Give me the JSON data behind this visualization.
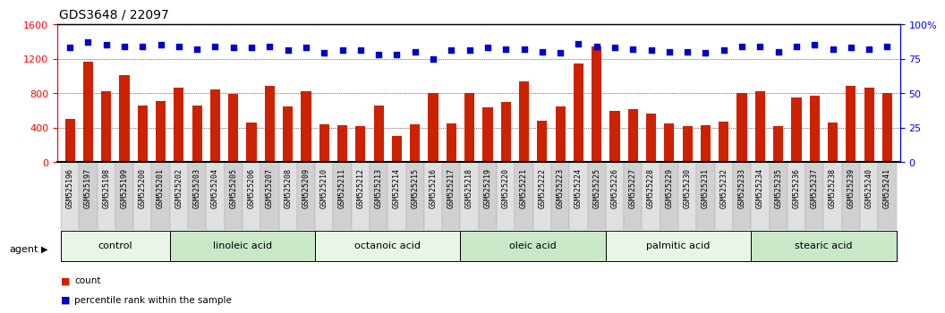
{
  "title": "GDS3648 / 22097",
  "samples": [
    "GSM525196",
    "GSM525197",
    "GSM525198",
    "GSM525199",
    "GSM525200",
    "GSM525201",
    "GSM525202",
    "GSM525203",
    "GSM525204",
    "GSM525205",
    "GSM525206",
    "GSM525207",
    "GSM525208",
    "GSM525209",
    "GSM525210",
    "GSM525211",
    "GSM525212",
    "GSM525213",
    "GSM525214",
    "GSM525215",
    "GSM525216",
    "GSM525217",
    "GSM525218",
    "GSM525219",
    "GSM525220",
    "GSM525221",
    "GSM525222",
    "GSM525223",
    "GSM525224",
    "GSM525225",
    "GSM525226",
    "GSM525227",
    "GSM525228",
    "GSM525229",
    "GSM525230",
    "GSM525231",
    "GSM525232",
    "GSM525233",
    "GSM525234",
    "GSM525235",
    "GSM525236",
    "GSM525237",
    "GSM525238",
    "GSM525239",
    "GSM525240",
    "GSM525241"
  ],
  "bar_values": [
    500,
    1160,
    820,
    1010,
    650,
    710,
    860,
    650,
    840,
    790,
    460,
    880,
    640,
    820,
    440,
    430,
    420,
    650,
    300,
    440,
    800,
    450,
    800,
    630,
    700,
    940,
    480,
    640,
    1140,
    1340,
    590,
    610,
    560,
    450,
    420,
    430,
    470,
    800,
    820,
    420,
    750,
    770,
    460,
    880,
    860,
    800
  ],
  "percentile_values": [
    83,
    87,
    85,
    84,
    84,
    85,
    84,
    82,
    84,
    83,
    83,
    84,
    81,
    83,
    79,
    81,
    81,
    78,
    78,
    80,
    75,
    81,
    81,
    83,
    82,
    82,
    80,
    79,
    86,
    84,
    83,
    82,
    81,
    80,
    80,
    79,
    81,
    84,
    84,
    80,
    84,
    85,
    82,
    83,
    82,
    84
  ],
  "groups": [
    {
      "label": "control",
      "start": 0,
      "end": 6,
      "color": "#e8f5e8"
    },
    {
      "label": "linoleic acid",
      "start": 6,
      "end": 14,
      "color": "#c8e8c8"
    },
    {
      "label": "octanoic acid",
      "start": 14,
      "end": 22,
      "color": "#e8f5e8"
    },
    {
      "label": "oleic acid",
      "start": 22,
      "end": 30,
      "color": "#c8e8c8"
    },
    {
      "label": "palmitic acid",
      "start": 30,
      "end": 38,
      "color": "#e8f5e8"
    },
    {
      "label": "stearic acid",
      "start": 38,
      "end": 46,
      "color": "#c8e8c8"
    }
  ],
  "bar_color": "#cc2200",
  "dot_color": "#0000cc",
  "ylim_left": [
    0,
    1600
  ],
  "ylim_right": [
    0,
    100
  ],
  "yticks_left": [
    0,
    400,
    800,
    1200,
    1600
  ],
  "yticks_right": [
    0,
    25,
    50,
    75,
    100
  ],
  "grid_values": [
    400,
    800,
    1200
  ],
  "agent_label": "agent",
  "legend_bar": "count",
  "legend_dot": "percentile rank within the sample",
  "title_fontsize": 10,
  "label_fontsize": 6.0,
  "axis_fontsize": 8,
  "group_fontsize": 8
}
